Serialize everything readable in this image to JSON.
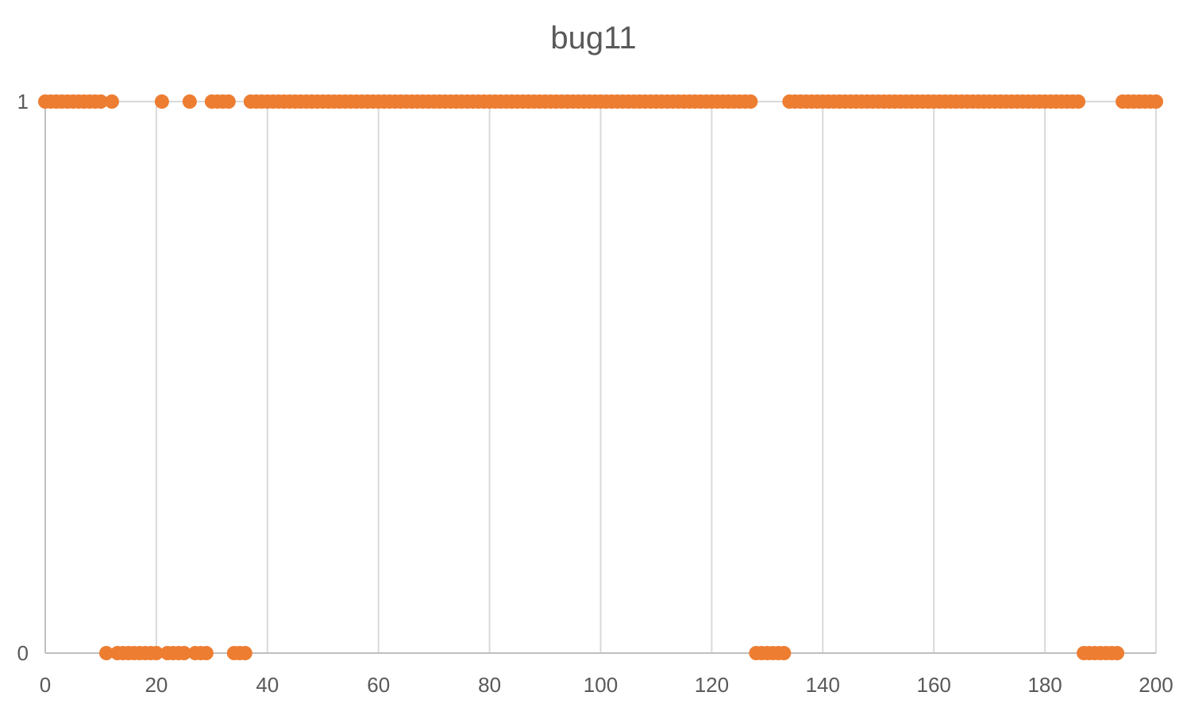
{
  "chart_data": {
    "type": "scatter",
    "title": "bug11",
    "xlabel": "",
    "ylabel": "",
    "xlim": [
      0,
      200
    ],
    "ylim": [
      0,
      1
    ],
    "x_ticks": [
      "0",
      "20",
      "40",
      "60",
      "80",
      "100",
      "120",
      "140",
      "160",
      "180",
      "200"
    ],
    "y_ticks": [
      "0",
      "1"
    ],
    "grid": "vertical",
    "legend": "none",
    "color": "#ED7D31",
    "gridline_color": "#D9D9D9",
    "series": [
      {
        "zero_ranges": [
          [
            11,
            11
          ],
          [
            13,
            20
          ],
          [
            22,
            25
          ],
          [
            27,
            29
          ],
          [
            34,
            36
          ],
          [
            128,
            133
          ],
          [
            187,
            193
          ]
        ],
        "x_start": 0,
        "x_end": 200
      }
    ]
  }
}
